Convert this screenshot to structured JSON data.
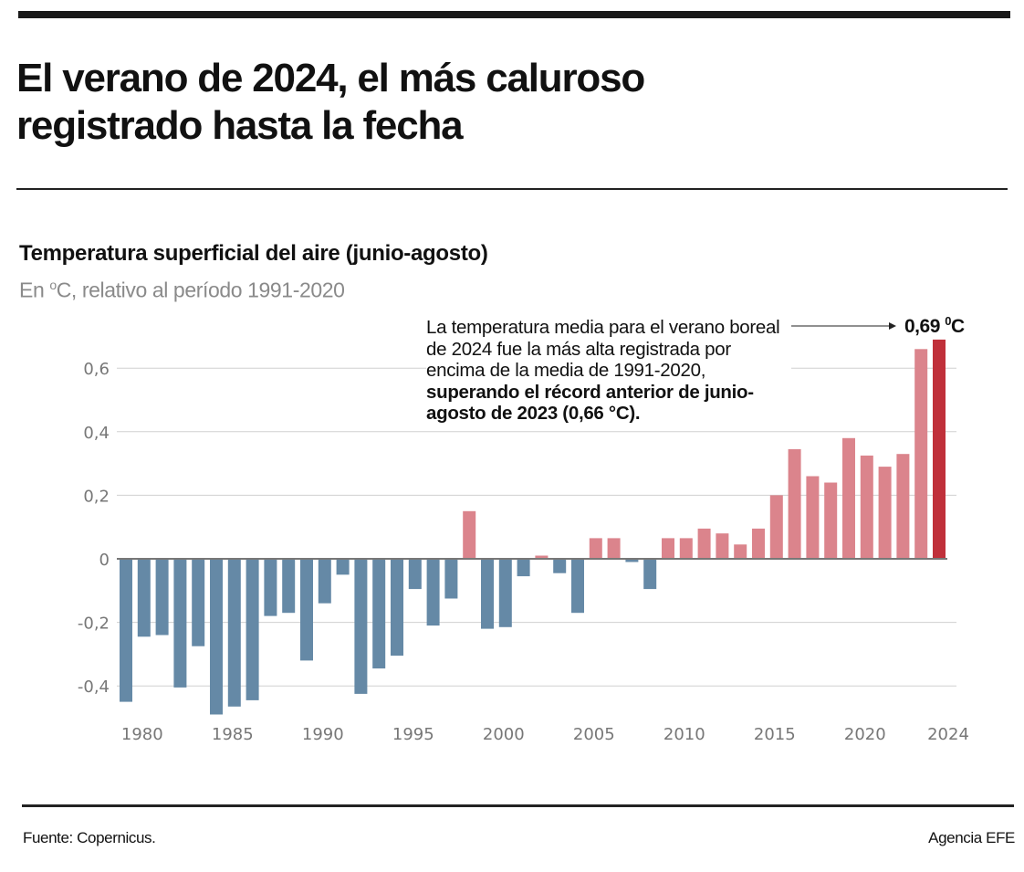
{
  "headline": {
    "line1": "El verano de 2024, el más caluroso",
    "line2": "registrado hasta la fecha"
  },
  "chart_title": "Temperatura superficial del aire (junio-agosto)",
  "chart_subtitle": {
    "prefix": "En ",
    "degree": "o",
    "suffix": "C, relativo al período 1991-2020"
  },
  "annotation": {
    "normal": "La temperatura media para el verano boreal de 2024 fue la más alta registrada por encima de la media de 1991-2020,",
    "bold": "superando el récord anterior de junio-agosto de 2023 (0,66 °C)."
  },
  "callout": {
    "value": "0,69 ",
    "degree": "0",
    "unit": "C"
  },
  "footer": {
    "source": "Fuente: Copernicus.",
    "credit": "Agencia EFE"
  },
  "colors": {
    "negative": "#6589a6",
    "positive": "#db848c",
    "highlight": "#c0303a",
    "grid": "#d0d0d0",
    "zero_line": "#777777"
  },
  "chart_data": {
    "type": "bar",
    "title": "Temperatura superficial del aire (junio-agosto)",
    "subtitle": "En ºC, relativo al período 1991-2020",
    "xlabel": "",
    "ylabel": "",
    "ylim": [
      -0.5,
      0.7
    ],
    "yticks": [
      -0.4,
      -0.2,
      0,
      0.2,
      0.4,
      0.6
    ],
    "ytick_labels": [
      "-0,4",
      "-0,2",
      "0",
      "0,2",
      "0,4",
      "0,6"
    ],
    "xtick_labels": [
      "1980",
      "1985",
      "1990",
      "1995",
      "2000",
      "2005",
      "2010",
      "2015",
      "2020",
      "2024"
    ],
    "grid": true,
    "legend": "none",
    "categories": [
      1979,
      1980,
      1981,
      1982,
      1983,
      1984,
      1985,
      1986,
      1987,
      1988,
      1989,
      1990,
      1991,
      1992,
      1993,
      1994,
      1995,
      1996,
      1997,
      1998,
      1999,
      2000,
      2001,
      2002,
      2003,
      2004,
      2005,
      2006,
      2007,
      2008,
      2009,
      2010,
      2011,
      2012,
      2013,
      2014,
      2015,
      2016,
      2017,
      2018,
      2019,
      2020,
      2021,
      2022,
      2023,
      2024
    ],
    "values": [
      -0.45,
      -0.245,
      -0.24,
      -0.405,
      -0.275,
      -0.49,
      -0.465,
      -0.445,
      -0.18,
      -0.17,
      -0.32,
      -0.14,
      -0.05,
      -0.425,
      -0.345,
      -0.305,
      -0.095,
      -0.21,
      -0.125,
      0.15,
      -0.22,
      -0.215,
      -0.055,
      0.01,
      -0.045,
      -0.17,
      0.065,
      0.065,
      -0.01,
      -0.095,
      0.065,
      0.065,
      0.095,
      0.08,
      0.045,
      0.095,
      0.2,
      0.345,
      0.26,
      0.24,
      0.38,
      0.325,
      0.29,
      0.33,
      0.66,
      0.69
    ],
    "highlight_year": 2024,
    "annotations": [
      {
        "text": "0,69 ºC",
        "target": 2024
      }
    ]
  }
}
